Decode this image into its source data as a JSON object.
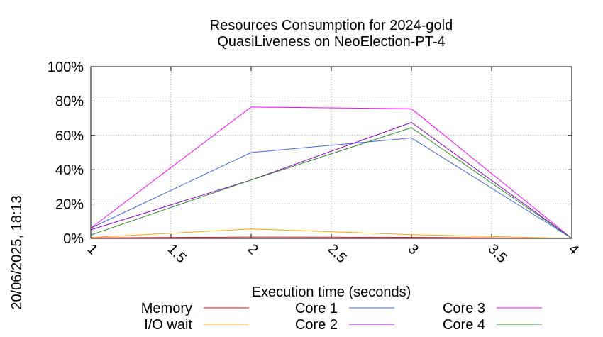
{
  "chart_data": {
    "type": "line",
    "title": "Resources Consumption for 2024-gold",
    "subtitle": "QuasiLiveness on NeoElection-PT-4",
    "xlabel": "Execution time (seconds)",
    "ylabel": "",
    "timestamp": "20/06/2025, 18:13",
    "xlim": [
      1,
      4
    ],
    "ylim": [
      0,
      100
    ],
    "x_ticks": [
      "1",
      "1.5",
      "2",
      "2.5",
      "3",
      "3.5",
      "4"
    ],
    "y_ticks": [
      "0%",
      "20%",
      "40%",
      "60%",
      "80%",
      "100%"
    ],
    "grid": true,
    "legend_position": "bottom",
    "x": [
      1,
      2,
      3,
      4
    ],
    "series": [
      {
        "name": "Memory",
        "color": "#ff0000",
        "values": [
          0.3,
          0.8,
          0.6,
          0
        ]
      },
      {
        "name": "I/O wait",
        "color": "#ffa500",
        "values": [
          0.5,
          5.5,
          2.2,
          0
        ]
      },
      {
        "name": "Core 1",
        "color": "#4169e1",
        "values": [
          6,
          50,
          58.5,
          0
        ]
      },
      {
        "name": "Core 2",
        "color": "#9400d3",
        "values": [
          5,
          34,
          67.5,
          0
        ]
      },
      {
        "name": "Core 3",
        "color": "#ff00ff",
        "values": [
          6,
          76.5,
          75.5,
          0
        ]
      },
      {
        "name": "Core 4",
        "color": "#228b22",
        "values": [
          2,
          34,
          64.5,
          0
        ]
      }
    ]
  }
}
